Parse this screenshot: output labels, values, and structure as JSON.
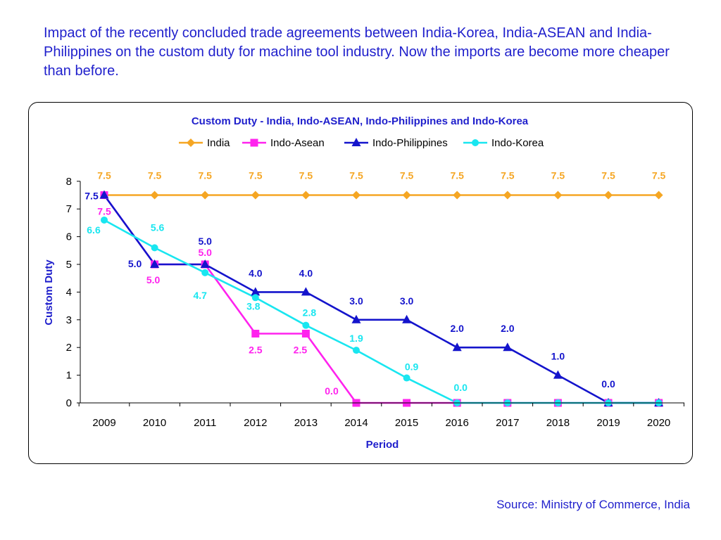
{
  "intro_text": "Impact of the recently concluded trade agreements between India-Korea, India-ASEAN and India-Philippines on the custom duty for machine tool industry. Now the imports are become more cheaper than before.",
  "source_text": "Source: Ministry of Commerce, India",
  "colors": {
    "text_blue": "#1f1fcc",
    "india": "#f5a623",
    "indo_asean": "#ff22ee",
    "indo_philippines": "#1414cc",
    "indo_korea": "#19e6f0"
  },
  "chart_data": {
    "type": "line",
    "title": "Custom Duty - India, Indo-ASEAN, Indo-Philippines and Indo-Korea",
    "xlabel": "Period",
    "ylabel": "Custom Duty",
    "ylim": [
      0,
      8
    ],
    "yticks": [
      "0",
      "1",
      "2",
      "3",
      "4",
      "5",
      "6",
      "7",
      "8"
    ],
    "grid": false,
    "legend_position": "top",
    "categories": [
      "2009",
      "2010",
      "2011",
      "2012",
      "2013",
      "2014",
      "2015",
      "2016",
      "2017",
      "2018",
      "2019",
      "2020"
    ],
    "series": [
      {
        "name": "India",
        "color": "#f5a623",
        "marker": "diamond",
        "values": [
          7.5,
          7.5,
          7.5,
          7.5,
          7.5,
          7.5,
          7.5,
          7.5,
          7.5,
          7.5,
          7.5,
          7.5
        ],
        "data_labels": [
          "7.5",
          "7.5",
          "7.5",
          "7.5",
          "7.5",
          "7.5",
          "7.5",
          "7.5",
          "7.5",
          "7.5",
          "7.5",
          "7.5"
        ]
      },
      {
        "name": "Indo-Asean",
        "color": "#ff22ee",
        "marker": "square",
        "values": [
          7.5,
          5.0,
          5.0,
          2.5,
          2.5,
          0,
          0,
          0,
          0,
          0,
          0,
          0
        ],
        "data_labels": [
          "7.5",
          "5.0",
          "5.0",
          "2.5",
          "2.5",
          "0.0",
          "",
          "",
          "",
          "",
          "",
          ""
        ]
      },
      {
        "name": "Indo-Philippines",
        "color": "#1414cc",
        "marker": "triangle",
        "values": [
          7.5,
          5.0,
          5.0,
          4.0,
          4.0,
          3.0,
          3.0,
          2.0,
          2.0,
          1.0,
          0,
          0
        ],
        "data_labels": [
          "7.5",
          "5.0",
          "5.0",
          "4.0",
          "4.0",
          "3.0",
          "3.0",
          "2.0",
          "2.0",
          "1.0",
          "0.0",
          ""
        ]
      },
      {
        "name": "Indo-Korea",
        "color": "#19e6f0",
        "marker": "circle",
        "values": [
          6.6,
          5.6,
          4.7,
          3.8,
          2.8,
          1.9,
          0.9,
          0,
          0,
          0,
          0,
          0
        ],
        "data_labels": [
          "6.6",
          "5.6",
          "4.7",
          "3.8",
          "2.8",
          "1.9",
          "0.9",
          "0.0",
          "",
          "",
          "",
          ""
        ]
      }
    ]
  }
}
